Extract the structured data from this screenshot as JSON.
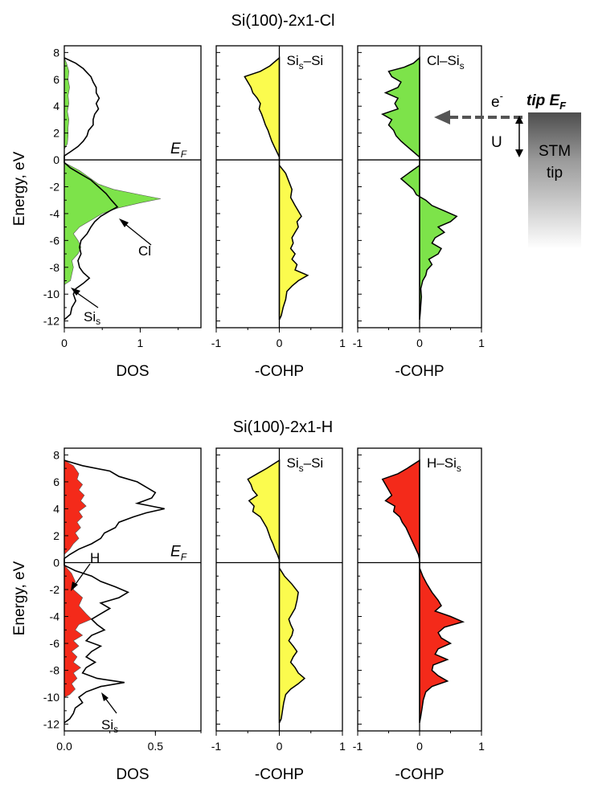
{
  "chart_data": [
    {
      "type": "area",
      "title": "Si(100)-2x1-Cl",
      "xlabel": "DOS",
      "ylabel": "Energy, eV",
      "xlim": [
        0,
        1.8
      ],
      "ylim": [
        -12.5,
        8.5
      ],
      "xticks": [
        "0",
        "1"
      ],
      "yticks": [
        "8",
        "6",
        "4",
        "2",
        "0",
        "-2",
        "-4",
        "-6",
        "-8",
        "-10",
        "-12"
      ],
      "fermi_label": "E",
      "fermi_sub": "F",
      "annotations": [
        {
          "text": "Cl",
          "target": "Cl DOS peak"
        },
        {
          "text": "Si",
          "sub": "s",
          "target": "Si surface DOS"
        }
      ],
      "series": [
        {
          "name": "Cl",
          "color": "#7de34a",
          "filled": true,
          "y": [
            7.6,
            7.2,
            6.6,
            6.0,
            5.4,
            4.8,
            4.2,
            3.6,
            3.0,
            2.4,
            1.8,
            1.2,
            0.8,
            -0.2,
            -0.8,
            -1.4,
            -1.8,
            -2.2,
            -2.6,
            -2.9,
            -3.2,
            -3.6,
            -4.0,
            -4.5,
            -5.0,
            -5.5,
            -6.0,
            -6.5,
            -7.0,
            -7.5,
            -8.0,
            -8.5,
            -9.0,
            -9.3
          ],
          "x": [
            0,
            0.03,
            0.06,
            0.05,
            0.07,
            0.05,
            0.06,
            0.04,
            0.06,
            0.05,
            0.05,
            0.04,
            0,
            0,
            0.2,
            0.35,
            0.45,
            0.65,
            1.0,
            1.27,
            1.0,
            0.7,
            0.5,
            0.35,
            0.2,
            0.12,
            0.18,
            0.22,
            0.18,
            0.1,
            0.12,
            0.1,
            0.08,
            0
          ]
        },
        {
          "name": "Si",
          "color": "#000000",
          "filled": false,
          "y": [
            7.6,
            7.2,
            6.8,
            6.5,
            6.2,
            5.8,
            5.4,
            5.0,
            4.6,
            4.2,
            3.8,
            3.4,
            3.0,
            2.6,
            2.2,
            1.8,
            1.4,
            1.0,
            0.6,
            0.3,
            -0.2,
            -0.6,
            -1.0,
            -1.5,
            -2.0,
            -2.5,
            -3.0,
            -3.5,
            -3.8,
            -4.2,
            -4.6,
            -5.0,
            -5.5,
            -6.0,
            -6.5,
            -7.0,
            -7.5,
            -8.0,
            -8.4,
            -8.8,
            -9.2,
            -9.6,
            -10.0,
            -10.5,
            -11.0,
            -11.5,
            -11.9
          ],
          "x": [
            0,
            0.15,
            0.25,
            0.3,
            0.35,
            0.38,
            0.42,
            0.42,
            0.46,
            0.42,
            0.45,
            0.4,
            0.38,
            0.38,
            0.32,
            0.3,
            0.25,
            0.18,
            0.08,
            0,
            0,
            0.08,
            0.2,
            0.35,
            0.45,
            0.55,
            0.62,
            0.7,
            0.6,
            0.48,
            0.4,
            0.35,
            0.3,
            0.22,
            0.2,
            0.22,
            0.18,
            0.2,
            0.25,
            0.33,
            0.25,
            0.15,
            0.12,
            0.15,
            0.1,
            0.08,
            0
          ]
        }
      ]
    },
    {
      "type": "area",
      "xlabel": "-COHP",
      "xlim": [
        -1,
        1
      ],
      "ylim": [
        -12.5,
        8.5
      ],
      "xticks": [
        "-1",
        "0",
        "1"
      ],
      "label": "Si",
      "label_sub": "s",
      "label_rest": "–Si",
      "series": [
        {
          "name": "Sis–Si",
          "color": "#fbfb4e",
          "y": [
            7.6,
            7.0,
            6.6,
            6.2,
            5.8,
            5.4,
            5.0,
            4.6,
            4.2,
            3.8,
            3.4,
            3.0,
            2.6,
            2.2,
            1.8,
            1.4,
            1.0,
            0.6,
            0.2,
            -0.4,
            -1.0,
            -1.6,
            -2.2,
            -2.8,
            -3.4,
            -3.8,
            -4.2,
            -4.6,
            -5.0,
            -5.4,
            -5.8,
            -6.2,
            -6.6,
            -7.0,
            -7.4,
            -7.8,
            -8.2,
            -8.6,
            -9.0,
            -9.4,
            -9.8,
            -10.4,
            -11.0,
            -11.6,
            -11.9
          ],
          "x": [
            0,
            -0.15,
            -0.3,
            -0.55,
            -0.5,
            -0.45,
            -0.42,
            -0.35,
            -0.3,
            -0.32,
            -0.28,
            -0.25,
            -0.22,
            -0.18,
            -0.15,
            -0.12,
            -0.08,
            -0.04,
            0,
            0,
            0.1,
            0.15,
            0.2,
            0.18,
            0.25,
            0.3,
            0.35,
            0.28,
            0.3,
            0.25,
            0.2,
            0.22,
            0.18,
            0.25,
            0.2,
            0.28,
            0.25,
            0.45,
            0.3,
            0.2,
            0.12,
            0.1,
            0.06,
            0.03,
            0
          ]
        }
      ]
    },
    {
      "type": "area",
      "xlabel": "-COHP",
      "xlim": [
        -1,
        1
      ],
      "ylim": [
        -12.5,
        8.5
      ],
      "xticks": [
        "-1",
        "0",
        "1"
      ],
      "label": "Cl–Si",
      "label_sub": "s",
      "label_rest": "",
      "series": [
        {
          "name": "Cl–Sis",
          "color": "#7de34a",
          "y": [
            7.6,
            7.2,
            6.9,
            6.6,
            6.2,
            5.8,
            5.4,
            5.0,
            4.6,
            4.2,
            3.8,
            3.4,
            3.0,
            2.6,
            2.2,
            1.8,
            1.4,
            1.0,
            0.6,
            0.2,
            -0.4,
            -0.9,
            -1.4,
            -1.8,
            -2.2,
            -2.6,
            -3.0,
            -3.4,
            -3.8,
            -4.2,
            -4.6,
            -5.0,
            -5.4,
            -5.8,
            -6.2,
            -6.6,
            -7.0,
            -7.4,
            -7.8,
            -8.2,
            -8.6,
            -9.0,
            -9.6,
            -10.2,
            -10.8,
            -11.4,
            -11.9
          ],
          "x": [
            0,
            -0.1,
            -0.25,
            -0.5,
            -0.45,
            -0.3,
            -0.35,
            -0.55,
            -0.35,
            -0.4,
            -0.35,
            -0.6,
            -0.45,
            -0.5,
            -0.42,
            -0.38,
            -0.3,
            -0.2,
            -0.1,
            0,
            0,
            -0.15,
            -0.3,
            -0.2,
            -0.1,
            -0.05,
            0.1,
            0.2,
            0.4,
            0.6,
            0.5,
            0.3,
            0.4,
            0.25,
            0.2,
            0.35,
            0.3,
            0.15,
            0.2,
            0.12,
            0.1,
            0.05,
            0.02,
            0.03,
            0.02,
            0.01,
            0
          ]
        }
      ]
    },
    {
      "type": "area",
      "title": "Si(100)-2x1-H",
      "xlabel": "DOS",
      "ylabel": "Energy, eV",
      "xlim": [
        0,
        0.75
      ],
      "ylim": [
        -12.5,
        8.5
      ],
      "xticks": [
        "0.0",
        "0.5"
      ],
      "yticks": [
        "8",
        "6",
        "4",
        "2",
        "0",
        "-2",
        "-4",
        "-6",
        "-8",
        "-10",
        "-12"
      ],
      "fermi_label": "E",
      "fermi_sub": "F",
      "annotations": [
        {
          "text": "H",
          "target": "H DOS"
        },
        {
          "text": "Si",
          "sub": "s",
          "target": "Si surface DOS"
        }
      ],
      "series": [
        {
          "name": "H",
          "color": "#f42a1a",
          "filled": true,
          "y": [
            7.6,
            7.2,
            6.6,
            6.2,
            5.8,
            5.4,
            5.0,
            4.6,
            4.2,
            3.8,
            3.4,
            3.0,
            2.6,
            2.2,
            1.8,
            1.4,
            1.0,
            0.6,
            -0.2,
            -0.8,
            -1.4,
            -2.0,
            -2.6,
            -3.2,
            -3.8,
            -4.2,
            -4.6,
            -5.0,
            -5.4,
            -5.8,
            -6.2,
            -6.6,
            -7.0,
            -7.4,
            -7.8,
            -8.2,
            -8.6,
            -9.0,
            -9.4,
            -9.8,
            -10.0
          ],
          "x": [
            0,
            0.05,
            0.08,
            0.07,
            0.1,
            0.08,
            0.11,
            0.09,
            0.12,
            0.08,
            0.1,
            0.07,
            0.09,
            0.06,
            0.08,
            0.05,
            0.03,
            0,
            0,
            0.04,
            0.06,
            0.05,
            0.1,
            0.08,
            0.12,
            0.15,
            0.08,
            0.06,
            0.1,
            0.05,
            0.08,
            0.04,
            0.07,
            0.05,
            0.09,
            0.05,
            0.07,
            0.04,
            0.06,
            0.03,
            0
          ]
        },
        {
          "name": "Si",
          "color": "#000000",
          "filled": false,
          "y": [
            7.6,
            7.2,
            6.8,
            6.4,
            6.0,
            5.6,
            5.2,
            4.8,
            4.4,
            4.0,
            3.7,
            3.4,
            3.0,
            2.6,
            2.2,
            1.8,
            1.4,
            1.0,
            0.6,
            0.3,
            -0.2,
            -0.6,
            -1.0,
            -1.4,
            -1.8,
            -2.2,
            -2.6,
            -3.0,
            -3.4,
            -3.8,
            -4.2,
            -4.6,
            -5.0,
            -5.4,
            -5.8,
            -6.2,
            -6.6,
            -7.0,
            -7.4,
            -7.8,
            -8.2,
            -8.6,
            -8.9,
            -9.2,
            -9.6,
            -10.0,
            -10.4,
            -10.8,
            -11.2,
            -11.6,
            -11.9
          ],
          "x": [
            0,
            0.1,
            0.25,
            0.3,
            0.4,
            0.45,
            0.5,
            0.48,
            0.4,
            0.55,
            0.45,
            0.38,
            0.3,
            0.28,
            0.22,
            0.2,
            0.15,
            0.08,
            0.03,
            0,
            0,
            0.06,
            0.15,
            0.2,
            0.28,
            0.35,
            0.3,
            0.2,
            0.25,
            0.2,
            0.15,
            0.18,
            0.22,
            0.15,
            0.12,
            0.2,
            0.15,
            0.12,
            0.17,
            0.12,
            0.1,
            0.18,
            0.33,
            0.2,
            0.12,
            0.08,
            0.1,
            0.06,
            0.05,
            0.03,
            0
          ]
        }
      ]
    },
    {
      "type": "area",
      "xlabel": "-COHP",
      "xlim": [
        -1,
        1
      ],
      "ylim": [
        -12.5,
        8.5
      ],
      "xticks": [
        "-1",
        "0",
        "1"
      ],
      "label": "Si",
      "label_sub": "s",
      "label_rest": "–Si",
      "series": [
        {
          "name": "Sis–Si",
          "color": "#fbfb4e",
          "y": [
            7.6,
            7.0,
            6.6,
            6.2,
            5.8,
            5.4,
            5.0,
            4.6,
            4.2,
            3.8,
            3.4,
            3.0,
            2.6,
            2.2,
            1.8,
            1.4,
            1.0,
            0.6,
            0.2,
            -0.4,
            -1.0,
            -1.6,
            -2.2,
            -2.8,
            -3.4,
            -3.8,
            -4.2,
            -4.6,
            -5.0,
            -5.4,
            -5.8,
            -6.2,
            -6.6,
            -7.0,
            -7.4,
            -7.8,
            -8.2,
            -8.6,
            -9.0,
            -9.4,
            -9.8,
            -10.4,
            -11.0,
            -11.6,
            -11.9
          ],
          "x": [
            0,
            -0.2,
            -0.35,
            -0.5,
            -0.45,
            -0.42,
            -0.35,
            -0.48,
            -0.4,
            -0.42,
            -0.3,
            -0.25,
            -0.2,
            -0.17,
            -0.14,
            -0.1,
            -0.07,
            -0.03,
            0,
            0,
            0.08,
            0.2,
            0.3,
            0.28,
            0.25,
            0.2,
            0.15,
            0.18,
            0.22,
            0.2,
            0.15,
            0.22,
            0.28,
            0.22,
            0.18,
            0.25,
            0.3,
            0.4,
            0.3,
            0.18,
            0.1,
            0.07,
            0.05,
            0.03,
            0
          ]
        }
      ]
    },
    {
      "type": "area",
      "xlabel": "-COHP",
      "xlim": [
        -1,
        1
      ],
      "ylim": [
        -12.5,
        8.5
      ],
      "xticks": [
        "-1",
        "0",
        "1"
      ],
      "label": "H–Si",
      "label_sub": "s",
      "label_rest": "",
      "series": [
        {
          "name": "H–Sis",
          "color": "#f42a1a",
          "y": [
            7.6,
            7.0,
            6.6,
            6.2,
            5.8,
            5.4,
            5.0,
            4.6,
            4.2,
            3.8,
            3.4,
            3.0,
            2.6,
            2.2,
            1.8,
            1.4,
            1.0,
            0.6,
            0.2,
            -0.4,
            -1.0,
            -1.6,
            -2.2,
            -2.8,
            -3.2,
            -3.6,
            -4.0,
            -4.4,
            -4.8,
            -5.2,
            -5.6,
            -6.0,
            -6.4,
            -6.8,
            -7.2,
            -7.6,
            -8.0,
            -8.4,
            -8.8,
            -9.2,
            -9.6,
            -10.2,
            -10.8,
            -11.4,
            -11.9
          ],
          "x": [
            0,
            -0.2,
            -0.35,
            -0.6,
            -0.55,
            -0.5,
            -0.45,
            -0.55,
            -0.4,
            -0.42,
            -0.32,
            -0.28,
            -0.22,
            -0.18,
            -0.14,
            -0.1,
            -0.06,
            -0.02,
            0,
            0,
            0.05,
            0.12,
            0.2,
            0.3,
            0.35,
            0.25,
            0.5,
            0.7,
            0.4,
            0.3,
            0.35,
            0.5,
            0.3,
            0.25,
            0.45,
            0.22,
            0.2,
            0.3,
            0.45,
            0.2,
            0.1,
            0.06,
            0.04,
            0.02,
            0
          ]
        }
      ]
    }
  ],
  "tip": {
    "electron": "e",
    "electron_sup": "-",
    "tip_label": "tip E",
    "tip_label_sub": "F",
    "bias": "U",
    "stm_line1": "STM",
    "stm_line2": "tip",
    "arrow_color": "#555555"
  }
}
